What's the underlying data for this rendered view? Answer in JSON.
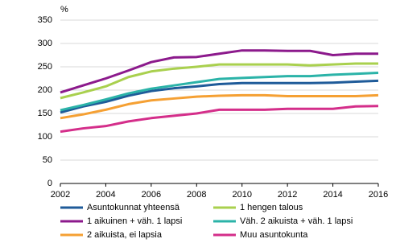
{
  "chart_data": {
    "type": "line",
    "y_label": "%",
    "x": [
      2002,
      2003,
      2004,
      2005,
      2006,
      2007,
      2008,
      2009,
      2010,
      2011,
      2012,
      2013,
      2014,
      2015,
      2016
    ],
    "xlim": [
      2002,
      2016
    ],
    "xticks": [
      2002,
      2004,
      2006,
      2008,
      2010,
      2012,
      2014,
      2016
    ],
    "ylim": [
      0,
      350
    ],
    "yticks": [
      0,
      50,
      100,
      150,
      200,
      250,
      300,
      350
    ],
    "grid": true,
    "series": [
      {
        "name": "Asuntokunnat yhteensä",
        "color": "#1f5b99",
        "values": [
          152,
          165,
          175,
          188,
          198,
          204,
          208,
          213,
          215,
          215,
          215,
          215,
          216,
          218,
          220
        ]
      },
      {
        "name": "1 hengen talous",
        "color": "#a9d04e",
        "values": [
          183,
          195,
          208,
          228,
          240,
          246,
          250,
          255,
          255,
          255,
          255,
          253,
          255,
          257,
          257
        ]
      },
      {
        "name": "1 aikuinen + väh. 1 lapsi",
        "color": "#8c1a8c",
        "values": [
          195,
          210,
          225,
          242,
          260,
          270,
          271,
          278,
          285,
          285,
          284,
          284,
          275,
          278,
          278
        ]
      },
      {
        "name": "Väh. 2 aikuista + väh. 1 lapsi",
        "color": "#2bb3a8",
        "values": [
          157,
          168,
          180,
          193,
          203,
          210,
          217,
          224,
          226,
          228,
          230,
          230,
          233,
          235,
          237
        ]
      },
      {
        "name": "2 aikuista, ei lapsia",
        "color": "#f5a033",
        "values": [
          140,
          148,
          158,
          170,
          178,
          182,
          186,
          188,
          189,
          189,
          187,
          187,
          187,
          187,
          189
        ]
      },
      {
        "name": "Muu asuntokunta",
        "color": "#d42e8a",
        "values": [
          111,
          118,
          123,
          133,
          140,
          145,
          150,
          158,
          158,
          158,
          160,
          160,
          160,
          165,
          166
        ]
      }
    ]
  }
}
